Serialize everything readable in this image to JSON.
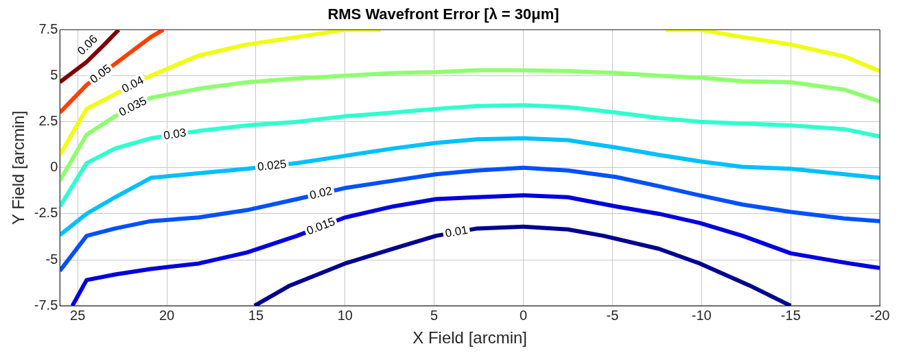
{
  "chart_data": {
    "type": "line",
    "title": "RMS Wavefront Error [λ = 30μm]",
    "xlabel": "X Field [arcmin]",
    "ylabel": "Y Field [arcmin]",
    "xlim": [
      26,
      -20
    ],
    "xticks": [
      25,
      20,
      15,
      10,
      5,
      0,
      -5,
      -10,
      -15,
      -20
    ],
    "ylim": [
      -7.5,
      7.5
    ],
    "yticks": [
      -7.5,
      -5,
      -2.5,
      0,
      2.5,
      5,
      7.5
    ],
    "grid": true,
    "legend": false,
    "marker": "none",
    "line_style": "solid",
    "series": [
      {
        "name": "0.01",
        "color": "#00008f",
        "x": [
          15.08,
          13.1,
          10,
          7.3,
          4.9,
          2.6,
          0,
          -2.5,
          -4.5,
          -7.6,
          -9.9,
          -12.7,
          -15
        ],
        "values": [
          -7.5,
          -6.4,
          -5.2,
          -4.4,
          -3.7,
          -3.3,
          -3.2,
          -3.35,
          -3.7,
          -4.4,
          -5.2,
          -6.4,
          -7.5
        ]
      },
      {
        "name": "0.015",
        "color": "#0000dd",
        "x": [
          25.3,
          24.5,
          22.9,
          20.9,
          18.2,
          15.5,
          12.7,
          10,
          7.3,
          4.9,
          2.6,
          0,
          -2.5,
          -5.2,
          -7.6,
          -9.9,
          -12.3,
          -15,
          -18,
          -20
        ],
        "values": [
          -7.5,
          -6.1,
          -5.8,
          -5.5,
          -5.2,
          -4.6,
          -3.7,
          -2.7,
          -2.1,
          -1.7,
          -1.6,
          -1.5,
          -1.6,
          -2.1,
          -2.5,
          -3,
          -3.7,
          -4.65,
          -5.15,
          -5.45
        ]
      },
      {
        "name": "0.02",
        "color": "#0050ff",
        "x": [
          26,
          24.5,
          22.9,
          20.9,
          18.2,
          15.5,
          12.7,
          10,
          7.3,
          4.9,
          2.6,
          0,
          -2.5,
          -5.2,
          -7.6,
          -9.9,
          -12.3,
          -15,
          -18,
          -20
        ],
        "values": [
          -5.6,
          -3.7,
          -3.3,
          -2.9,
          -2.7,
          -2.3,
          -1.7,
          -1.1,
          -0.7,
          -0.35,
          -0.15,
          0,
          -0.15,
          -0.5,
          -1,
          -1.5,
          -2,
          -2.4,
          -2.75,
          -2.9
        ]
      },
      {
        "name": "0.025",
        "color": "#00bfff",
        "x": [
          26,
          24.5,
          22.9,
          20.9,
          18.2,
          15.5,
          12.7,
          10,
          7.3,
          4.9,
          2.6,
          0,
          -2.5,
          -5.2,
          -7.6,
          -9.9,
          -12.3,
          -15,
          -18,
          -20
        ],
        "values": [
          -3.65,
          -2.5,
          -1.6,
          -0.55,
          -0.3,
          -0.05,
          0.25,
          0.65,
          1.05,
          1.35,
          1.55,
          1.6,
          1.5,
          1.1,
          0.7,
          0.35,
          0.05,
          -0.05,
          -0.35,
          -0.55
        ]
      },
      {
        "name": "0.03",
        "color": "#30ffcf",
        "x": [
          26,
          24.5,
          22.9,
          20.9,
          18.2,
          15.5,
          12.7,
          10,
          7.3,
          4.9,
          2.6,
          0,
          -2.5,
          -5.2,
          -7.6,
          -9.9,
          -12.3,
          -15,
          -18,
          -20
        ],
        "values": [
          -2.1,
          0.25,
          1.05,
          1.6,
          2,
          2.3,
          2.5,
          2.8,
          3,
          3.2,
          3.35,
          3.4,
          3.3,
          3,
          2.7,
          2.5,
          2.4,
          2.3,
          2.1,
          1.7
        ]
      },
      {
        "name": "0.035",
        "color": "#8fff70",
        "x": [
          26,
          24.5,
          22.9,
          20.9,
          18.2,
          15.5,
          12.7,
          10,
          7.3,
          4.9,
          2.6,
          0,
          -2.5,
          -5.2,
          -7.6,
          -9.9,
          -12.3,
          -15,
          -18,
          -20
        ],
        "values": [
          -0.7,
          1.8,
          2.8,
          3.8,
          4.3,
          4.65,
          4.85,
          5,
          5.15,
          5.2,
          5.3,
          5.3,
          5.25,
          5.15,
          5,
          4.9,
          4.7,
          4.65,
          4.25,
          3.6
        ]
      },
      {
        "name": "0.04",
        "color": "#efff10",
        "x": [
          26,
          24.5,
          22.9,
          20.9,
          18.2,
          15.5,
          12.7,
          10,
          8,
          0,
          -8,
          -9.9,
          -12.3,
          -15,
          -18,
          -20
        ],
        "values": [
          0.7,
          3.2,
          4,
          5,
          6.1,
          6.7,
          7.1,
          7.5,
          7.5,
          null,
          7.5,
          7.5,
          7.1,
          6.7,
          6.05,
          5.25
        ]
      },
      {
        "name": "0.05",
        "color": "#ff4000",
        "x": [
          26,
          24.5,
          22.9,
          20.9,
          20.2
        ],
        "values": [
          3,
          4.5,
          5.65,
          7.1,
          7.5
        ]
      },
      {
        "name": "0.06",
        "color": "#800000",
        "x": [
          26,
          24.5,
          23.5,
          22.7
        ],
        "values": [
          4.65,
          5.75,
          6.7,
          7.5
        ]
      }
    ]
  }
}
